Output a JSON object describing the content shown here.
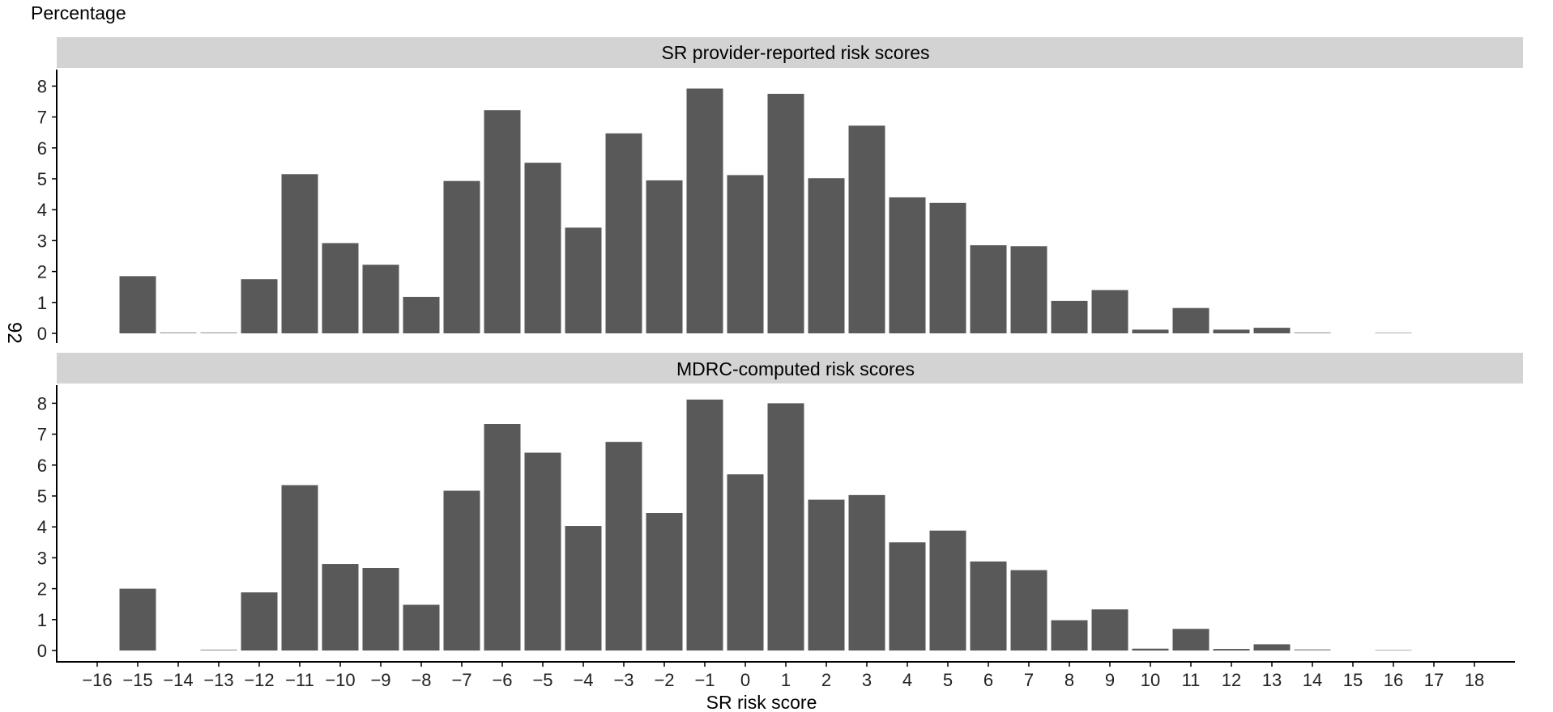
{
  "page_mark": "92",
  "chart_data": {
    "type": "bar",
    "ylabel": "Percentage",
    "xlabel": "SR risk score",
    "x_ticks": [
      "−16",
      "−15",
      "−14",
      "−13",
      "−12",
      "−11",
      "−10",
      "−9",
      "−8",
      "−7",
      "−6",
      "−5",
      "−4",
      "−3",
      "−2",
      "−1",
      "0",
      "1",
      "2",
      "3",
      "4",
      "5",
      "6",
      "7",
      "8",
      "9",
      "10",
      "11",
      "12",
      "13",
      "14",
      "15",
      "16",
      "17",
      "18"
    ],
    "x_values": [
      -16,
      -15,
      -14,
      -13,
      -12,
      -11,
      -10,
      -9,
      -8,
      -7,
      -6,
      -5,
      -4,
      -3,
      -2,
      -1,
      0,
      1,
      2,
      3,
      4,
      5,
      6,
      7,
      8,
      9,
      10,
      11,
      12,
      13,
      14,
      15,
      16,
      17,
      18
    ],
    "xlim": [
      -17,
      19
    ],
    "ylim": [
      0,
      8.5
    ],
    "y_ticks": [
      0,
      1,
      2,
      3,
      4,
      5,
      6,
      7,
      8
    ],
    "bar_color": "#595959",
    "strip_color": "#d3d3d3",
    "grid": false,
    "panels": [
      {
        "title": "SR provider-reported risk scores",
        "values": [
          0,
          1.85,
          0.03,
          0.03,
          1.75,
          5.15,
          2.92,
          2.22,
          1.18,
          4.93,
          7.22,
          5.52,
          3.42,
          6.47,
          4.95,
          7.92,
          5.12,
          7.75,
          5.02,
          6.72,
          4.4,
          4.22,
          2.85,
          2.82,
          1.05,
          1.4,
          0.12,
          0.82,
          0.12,
          0.18,
          0.03,
          0,
          0.02,
          0,
          0
        ]
      },
      {
        "title": "MDRC-computed risk scores",
        "values": [
          0,
          2.0,
          0,
          0.03,
          1.88,
          5.35,
          2.8,
          2.67,
          1.48,
          5.17,
          7.33,
          6.4,
          4.03,
          6.75,
          4.45,
          8.12,
          5.7,
          8.0,
          4.88,
          5.03,
          3.5,
          3.88,
          2.88,
          2.6,
          0.98,
          1.33,
          0.06,
          0.7,
          0.05,
          0.2,
          0.04,
          0,
          0.02,
          0,
          0
        ]
      }
    ]
  }
}
